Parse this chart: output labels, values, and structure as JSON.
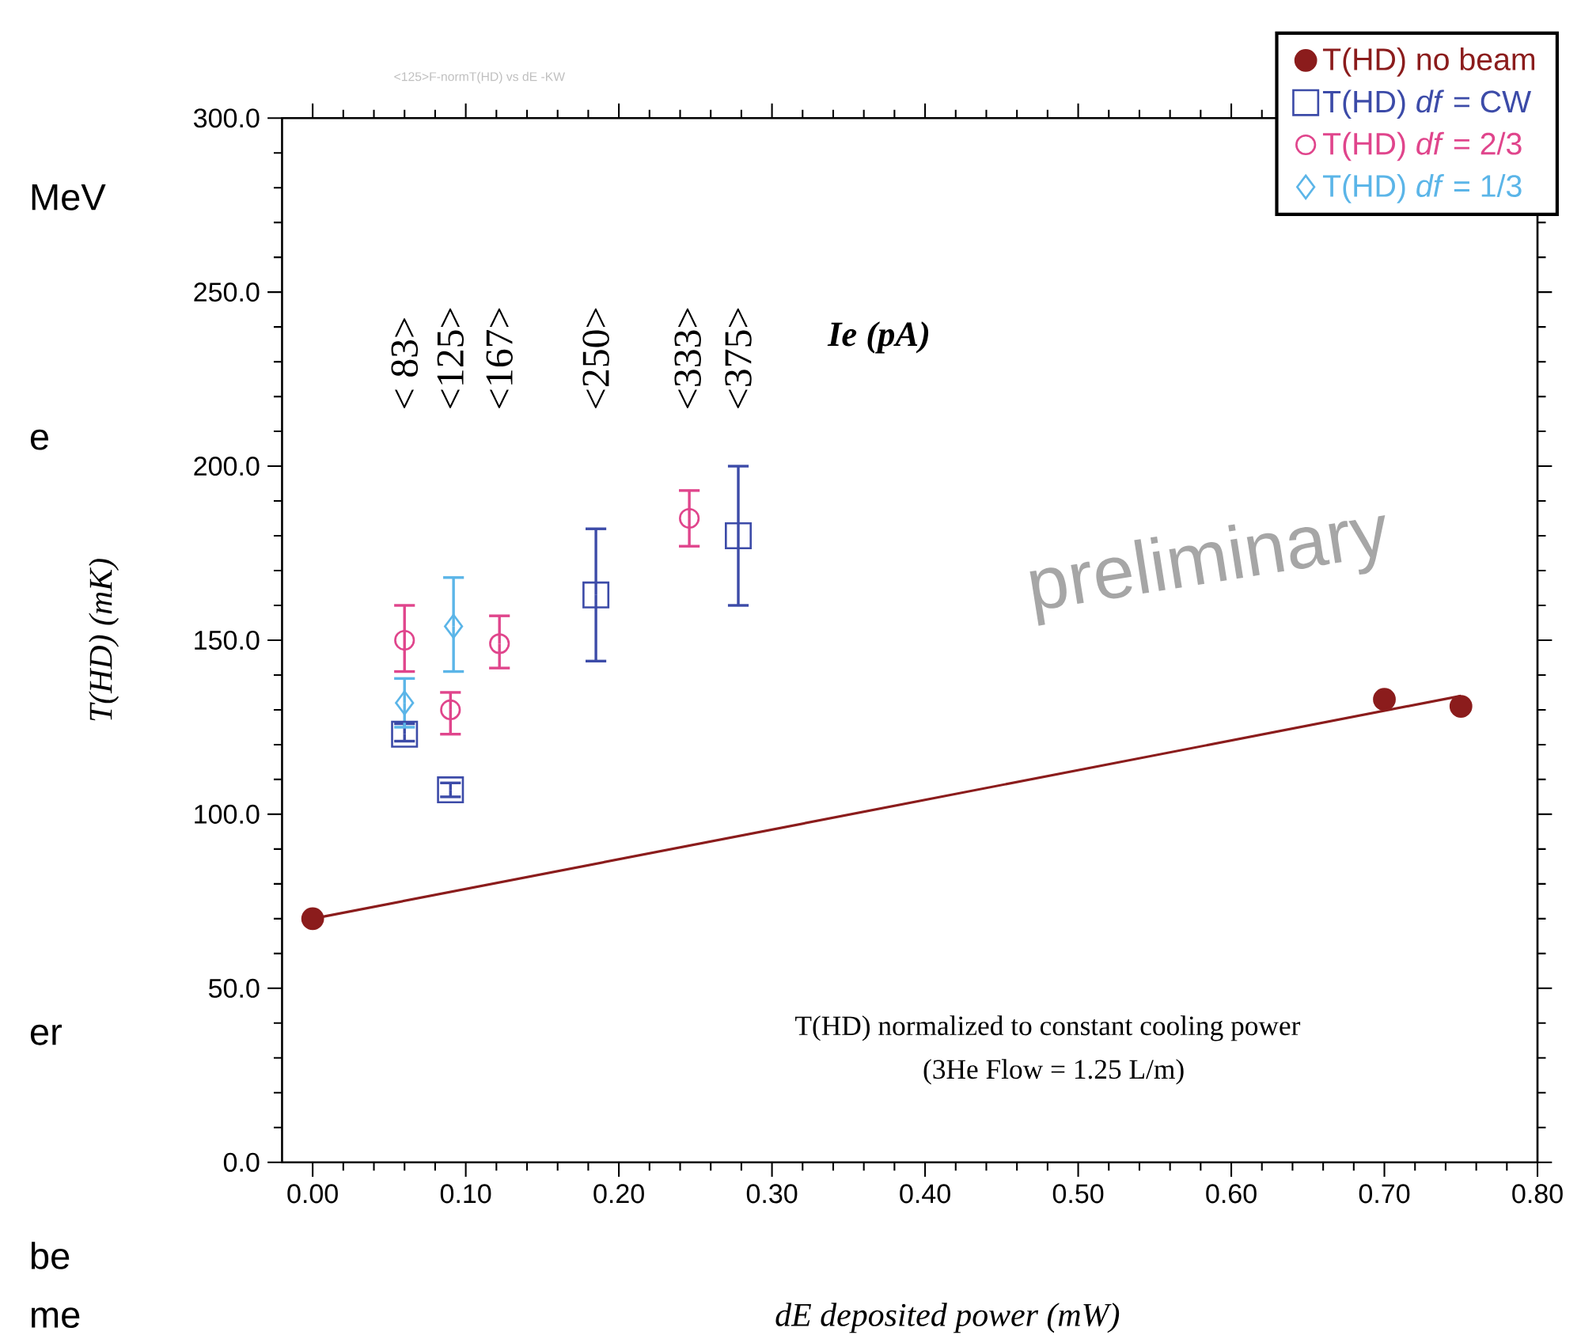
{
  "chart_data": {
    "type": "scatter",
    "title": "<125>F-normT(HD) vs dE -KW",
    "xlabel": "*dE deposited power (mW)*",
    "ylabel": "*T(HD) (mK)*",
    "xlim": [
      -0.02,
      0.8
    ],
    "ylim": [
      0,
      300
    ],
    "xticks": [
      {
        "value": 0,
        "label": "0.00"
      },
      {
        "value": 0.1,
        "label": "0.10"
      },
      {
        "value": 0.2,
        "label": "0.20"
      },
      {
        "value": 0.3,
        "label": "0.30"
      },
      {
        "value": 0.4,
        "label": "0.40"
      },
      {
        "value": 0.5,
        "label": "0.50"
      },
      {
        "value": 0.6,
        "label": "0.60"
      },
      {
        "value": 0.7,
        "label": "0.70"
      },
      {
        "value": 0.8,
        "label": "0.80"
      }
    ],
    "yticks": [
      {
        "value": 0,
        "label": "0.0"
      },
      {
        "value": 50,
        "label": "50.0"
      },
      {
        "value": 100,
        "label": "100.0"
      },
      {
        "value": 150,
        "label": "150.0"
      },
      {
        "value": 200,
        "label": "200.0"
      },
      {
        "value": 250,
        "label": "250.0"
      },
      {
        "value": 300,
        "label": "300.0"
      }
    ],
    "legend": "top right",
    "series": [
      {
        "name": "T(HD) no beam",
        "color": "#8b1c1c",
        "marker": "circle",
        "x": [
          0,
          0.7,
          0.75
        ],
        "values": [
          70,
          133,
          131
        ]
      },
      {
        "type": "line",
        "color": "#8b1c1c",
        "marker": "none",
        "x": [
          0,
          0.75
        ],
        "values": [
          70,
          134
        ]
      },
      {
        "name": "T(HD) *df* = CW",
        "color": "#3c4ba8",
        "marker": "square",
        "x": [
          0.06,
          0.09,
          0.185,
          0.278
        ],
        "values": [
          123,
          107,
          163,
          180
        ],
        "errors": [
          [
            121,
            126
          ],
          [
            105,
            109
          ],
          [
            144,
            182
          ],
          [
            160,
            200
          ]
        ]
      },
      {
        "name": "T(HD) *df* = 2/3",
        "color": "#e0458c",
        "marker": "circle",
        "x": [
          0.06,
          0.09,
          0.122,
          0.246
        ],
        "values": [
          150,
          130,
          149,
          185
        ],
        "errors": [
          [
            141,
            160
          ],
          [
            123,
            135
          ],
          [
            142,
            157
          ],
          [
            177,
            193
          ]
        ]
      },
      {
        "name": "T(HD) *df* = 1/3",
        "color": "#5bb5e8",
        "marker": "diamond",
        "x": [
          0.06,
          0.092
        ],
        "values": [
          132,
          154
        ],
        "errors": [
          [
            125,
            139
          ],
          [
            141,
            168
          ]
        ]
      }
    ],
    "annotations": [
      "< 83>",
      "<125>",
      "<167>",
      "<250>",
      "<333>",
      "<375>",
      "Ie (pA)",
      "T(HD) normalized to constant cooling power",
      "(3He Flow = 1.25 L/m)",
      "preliminary",
      "MeV",
      "e",
      "er",
      "be",
      "me"
    ]
  }
}
